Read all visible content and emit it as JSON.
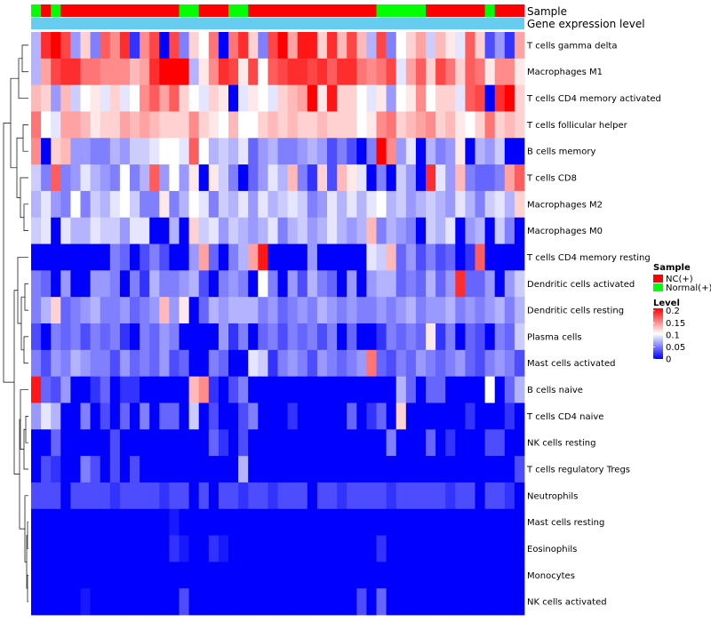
{
  "chart_data": {
    "type": "heatmap",
    "title": "",
    "annotation_labels": {
      "sample": "Sample",
      "gene_expression": "Gene expression level"
    },
    "sample_groups": [
      "Normal(+)",
      "NC(+)",
      "Normal(+)",
      "NC(+)",
      "NC(+)",
      "NC(+)",
      "NC(+)",
      "NC(+)",
      "NC(+)",
      "NC(+)",
      "NC(+)",
      "NC(+)",
      "NC(+)",
      "NC(+)",
      "NC(+)",
      "Normal(+)",
      "Normal(+)",
      "NC(+)",
      "NC(+)",
      "NC(+)",
      "Normal(+)",
      "Normal(+)",
      "NC(+)",
      "NC(+)",
      "NC(+)",
      "NC(+)",
      "NC(+)",
      "NC(+)",
      "NC(+)",
      "NC(+)",
      "NC(+)",
      "NC(+)",
      "NC(+)",
      "NC(+)",
      "NC(+)",
      "Normal(+)",
      "Normal(+)",
      "Normal(+)",
      "Normal(+)",
      "Normal(+)",
      "NC(+)",
      "NC(+)",
      "NC(+)",
      "NC(+)",
      "NC(+)",
      "NC(+)",
      "Normal(+)",
      "NC(+)",
      "NC(+)",
      "NC(+)"
    ],
    "rows": [
      "T cells gamma delta",
      "Macrophages M1",
      "T cells CD4 memory activated",
      "T cells follicular helper",
      "B cells memory",
      "T cells CD8",
      "Macrophages M2",
      "Macrophages M0",
      "T cells CD4 memory resting",
      "Dendritic cells activated",
      "Dendritic cells resting",
      "Plasma cells",
      "Mast cells activated",
      "B cells naive",
      "T cells CD4 naive",
      "NK cells resting",
      "T cells regulatory  Tregs",
      "Neutrophils",
      "Mast cells resting",
      "Eosinophils",
      "Monocytes",
      "NK cells activated"
    ],
    "values": [
      [
        0.07,
        0.19,
        0.21,
        0.18,
        0.06,
        0.12,
        0.05,
        0.17,
        0.15,
        0.19,
        0.02,
        0.15,
        0.18,
        0.0,
        0.18,
        0.05,
        0.12,
        0.1,
        0.16,
        0.0,
        0.16,
        0.19,
        0.12,
        0.05,
        0.18,
        0.21,
        0.14,
        0.2,
        0.2,
        0.12,
        0.19,
        0.13,
        0.18,
        0.13,
        0.07,
        0.18,
        0.05,
        0.1,
        0.12,
        0.14,
        0.08,
        0.13,
        0.11,
        0.09,
        0.17,
        0.12,
        0.03,
        0.06,
        0.02,
        0.14
      ],
      [
        0.07,
        0.14,
        0.18,
        0.19,
        0.19,
        0.16,
        0.16,
        0.15,
        0.15,
        0.15,
        0.13,
        0.14,
        0.19,
        0.21,
        0.21,
        0.21,
        0.07,
        0.11,
        0.15,
        0.19,
        0.18,
        0.11,
        0.18,
        0.1,
        0.17,
        0.18,
        0.19,
        0.19,
        0.18,
        0.19,
        0.17,
        0.19,
        0.19,
        0.16,
        0.15,
        0.16,
        0.18,
        0.09,
        0.14,
        0.17,
        0.12,
        0.18,
        0.16,
        0.12,
        0.17,
        0.16,
        0.11,
        0.15,
        0.15,
        0.11
      ],
      [
        0.13,
        0.12,
        0.06,
        0.13,
        0.08,
        0.1,
        0.11,
        0.09,
        0.12,
        0.09,
        0.1,
        0.15,
        0.17,
        0.14,
        0.17,
        0.12,
        0.1,
        0.09,
        0.12,
        0.11,
        0.0,
        0.09,
        0.11,
        0.1,
        0.09,
        0.12,
        0.13,
        0.14,
        0.21,
        0.11,
        0.2,
        0.12,
        0.12,
        0.1,
        0.09,
        0.11,
        0.06,
        0.1,
        0.11,
        0.15,
        0.1,
        0.12,
        0.12,
        0.09,
        0.17,
        0.18,
        0.0,
        0.19,
        0.21,
        0.12
      ],
      [
        0.16,
        0.1,
        0.09,
        0.14,
        0.14,
        0.13,
        0.11,
        0.12,
        0.12,
        0.14,
        0.13,
        0.14,
        0.13,
        0.12,
        0.12,
        0.12,
        0.15,
        0.12,
        0.11,
        0.1,
        0.13,
        0.1,
        0.1,
        0.12,
        0.13,
        0.12,
        0.13,
        0.12,
        0.12,
        0.13,
        0.12,
        0.12,
        0.12,
        0.1,
        0.11,
        0.15,
        0.16,
        0.12,
        0.13,
        0.14,
        0.15,
        0.12,
        0.13,
        0.11,
        0.1,
        0.12,
        0.16,
        0.12,
        0.13,
        0.12
      ],
      [
        0.15,
        0.0,
        0.12,
        0.13,
        0.06,
        0.06,
        0.05,
        0.05,
        0.07,
        0.06,
        0.08,
        0.08,
        0.09,
        0.1,
        0.1,
        0.09,
        0.17,
        0.1,
        0.07,
        0.08,
        0.07,
        0.09,
        0.04,
        0.06,
        0.07,
        0.05,
        0.05,
        0.06,
        0.07,
        0.06,
        0.03,
        0.05,
        0.03,
        0.0,
        0.05,
        0.21,
        0.15,
        0.06,
        0.09,
        0.0,
        0.07,
        0.05,
        0.06,
        0.11,
        0.0,
        0.07,
        0.06,
        0.08,
        0.0,
        0.0
      ],
      [
        0.08,
        0.05,
        0.17,
        0.05,
        0.06,
        0.09,
        0.07,
        0.06,
        0.05,
        0.1,
        0.05,
        0.07,
        0.17,
        0.06,
        0.1,
        0.06,
        0.11,
        0.0,
        0.11,
        0.08,
        0.05,
        0.0,
        0.04,
        0.06,
        0.09,
        0.07,
        0.13,
        0.05,
        0.02,
        0.12,
        0.03,
        0.13,
        0.11,
        0.09,
        0.0,
        0.05,
        0.0,
        0.08,
        0.06,
        0.0,
        0.19,
        0.09,
        0.06,
        0.13,
        0.05,
        0.04,
        0.04,
        0.05,
        0.14,
        0.17
      ],
      [
        0.07,
        0.09,
        0.06,
        0.05,
        0.1,
        0.05,
        0.08,
        0.07,
        0.09,
        0.1,
        0.08,
        0.05,
        0.05,
        0.11,
        0.05,
        0.07,
        0.1,
        0.09,
        0.05,
        0.08,
        0.07,
        0.09,
        0.06,
        0.09,
        0.07,
        0.08,
        0.09,
        0.08,
        0.05,
        0.06,
        0.09,
        0.07,
        0.09,
        0.07,
        0.09,
        0.1,
        0.07,
        0.08,
        0.06,
        0.07,
        0.08,
        0.07,
        0.06,
        0.09,
        0.07,
        0.05,
        0.08,
        0.09,
        0.07,
        0.12
      ],
      [
        0.08,
        0.09,
        0.0,
        0.09,
        0.07,
        0.07,
        0.09,
        0.08,
        0.08,
        0.06,
        0.09,
        0.09,
        0.0,
        0.0,
        0.07,
        0.0,
        0.12,
        0.08,
        0.09,
        0.06,
        0.08,
        0.07,
        0.06,
        0.07,
        0.09,
        0.05,
        0.07,
        0.08,
        0.06,
        0.07,
        0.09,
        0.07,
        0.06,
        0.07,
        0.13,
        0.05,
        0.07,
        0.06,
        0.05,
        0.0,
        0.08,
        0.07,
        0.09,
        0.0,
        0.06,
        0.07,
        0.0,
        0.08,
        0.05,
        0.0
      ],
      [
        0.0,
        0.0,
        0.0,
        0.0,
        0.0,
        0.0,
        0.0,
        0.0,
        0.05,
        0.04,
        0.0,
        0.03,
        0.05,
        0.03,
        0.0,
        0.0,
        0.06,
        0.14,
        0.04,
        0.0,
        0.05,
        0.07,
        0.14,
        0.2,
        0.0,
        0.0,
        0.0,
        0.0,
        0.06,
        0.0,
        0.0,
        0.0,
        0.0,
        0.0,
        0.09,
        0.08,
        0.13,
        0.04,
        0.06,
        0.03,
        0.05,
        0.03,
        0.04,
        0.0,
        0.02,
        0.17,
        0.0,
        0.0,
        0.0,
        0.0
      ],
      [
        0.05,
        0.04,
        0.0,
        0.06,
        0.0,
        0.0,
        0.06,
        0.06,
        0.05,
        0.0,
        0.05,
        0.02,
        0.07,
        0.05,
        0.05,
        0.06,
        0.07,
        0.03,
        0.0,
        0.05,
        0.06,
        0.05,
        0.0,
        0.1,
        0.05,
        0.0,
        0.06,
        0.03,
        0.07,
        0.05,
        0.04,
        0.0,
        0.06,
        0.0,
        0.06,
        0.07,
        0.07,
        0.04,
        0.05,
        0.04,
        0.07,
        0.04,
        0.06,
        0.19,
        0.04,
        0.04,
        0.06,
        0.0,
        0.06,
        0.08
      ],
      [
        0.05,
        0.07,
        0.12,
        0.04,
        0.05,
        0.06,
        0.07,
        0.05,
        0.05,
        0.06,
        0.04,
        0.05,
        0.06,
        0.13,
        0.06,
        0.11,
        0.0,
        0.04,
        0.07,
        0.06,
        0.07,
        0.07,
        0.07,
        0.05,
        0.06,
        0.04,
        0.05,
        0.06,
        0.05,
        0.07,
        0.06,
        0.05,
        0.06,
        0.05,
        0.05,
        0.06,
        0.05,
        0.06,
        0.07,
        0.05,
        0.06,
        0.06,
        0.07,
        0.05,
        0.06,
        0.05,
        0.06,
        0.07,
        0.05,
        0.07
      ],
      [
        0.03,
        0.0,
        0.05,
        0.04,
        0.05,
        0.03,
        0.05,
        0.04,
        0.05,
        0.02,
        0.0,
        0.05,
        0.04,
        0.06,
        0.05,
        0.0,
        0.0,
        0.0,
        0.0,
        0.06,
        0.02,
        0.05,
        0.0,
        0.04,
        0.05,
        0.03,
        0.05,
        0.04,
        0.05,
        0.03,
        0.05,
        0.0,
        0.04,
        0.0,
        0.0,
        0.02,
        0.05,
        0.04,
        0.05,
        0.04,
        0.11,
        0.02,
        0.05,
        0.0,
        0.04,
        0.03,
        0.0,
        0.05,
        0.04,
        0.08
      ],
      [
        0.05,
        0.03,
        0.06,
        0.05,
        0.07,
        0.06,
        0.05,
        0.05,
        0.03,
        0.06,
        0.04,
        0.05,
        0.04,
        0.06,
        0.03,
        0.04,
        0.0,
        0.0,
        0.05,
        0.04,
        0.0,
        0.0,
        0.09,
        0.08,
        0.02,
        0.05,
        0.06,
        0.05,
        0.03,
        0.06,
        0.05,
        0.04,
        0.05,
        0.06,
        0.16,
        0.04,
        0.03,
        0.05,
        0.04,
        0.06,
        0.05,
        0.04,
        0.05,
        0.06,
        0.04,
        0.03,
        0.05,
        0.06,
        0.05,
        0.03
      ],
      [
        0.2,
        0.04,
        0.03,
        0.06,
        0.0,
        0.0,
        0.02,
        0.04,
        0.0,
        0.02,
        0.02,
        0.0,
        0.0,
        0.0,
        0.0,
        0.0,
        0.13,
        0.15,
        0.02,
        0.0,
        0.03,
        0.05,
        0.0,
        0.0,
        0.0,
        0.0,
        0.0,
        0.0,
        0.0,
        0.0,
        0.0,
        0.0,
        0.0,
        0.0,
        0.0,
        0.0,
        0.0,
        0.07,
        0.04,
        0.0,
        0.04,
        0.04,
        0.0,
        0.0,
        0.0,
        0.0,
        0.1,
        0.0,
        0.04,
        0.07
      ],
      [
        0.06,
        0.09,
        0.07,
        0.0,
        0.0,
        0.05,
        0.0,
        0.03,
        0.0,
        0.04,
        0.0,
        0.05,
        0.0,
        0.04,
        0.04,
        0.0,
        0.08,
        0.0,
        0.03,
        0.0,
        0.0,
        0.03,
        0.05,
        0.0,
        0.0,
        0.0,
        0.02,
        0.0,
        0.0,
        0.0,
        0.0,
        0.0,
        0.04,
        0.0,
        0.02,
        0.04,
        0.0,
        0.12,
        0.0,
        0.0,
        0.0,
        0.0,
        0.0,
        0.0,
        0.02,
        0.0,
        0.0,
        0.0,
        0.02,
        0.0
      ],
      [
        0.0,
        0.0,
        0.04,
        0.0,
        0.0,
        0.0,
        0.0,
        0.0,
        0.03,
        0.0,
        0.0,
        0.0,
        0.0,
        0.0,
        0.0,
        0.0,
        0.0,
        0.0,
        0.04,
        0.02,
        0.0,
        0.03,
        0.0,
        0.0,
        0.0,
        0.0,
        0.0,
        0.0,
        0.0,
        0.0,
        0.0,
        0.0,
        0.0,
        0.0,
        0.0,
        0.0,
        0.05,
        0.0,
        0.0,
        0.0,
        0.04,
        0.0,
        0.02,
        0.0,
        0.0,
        0.0,
        0.03,
        0.03,
        0.0,
        0.0
      ],
      [
        0.0,
        0.03,
        0.02,
        0.0,
        0.0,
        0.05,
        0.03,
        0.0,
        0.03,
        0.0,
        0.03,
        0.0,
        0.0,
        0.0,
        0.0,
        0.0,
        0.0,
        0.0,
        0.0,
        0.0,
        0.0,
        0.07,
        0.0,
        0.0,
        0.0,
        0.0,
        0.0,
        0.0,
        0.0,
        0.0,
        0.0,
        0.0,
        0.0,
        0.0,
        0.0,
        0.0,
        0.0,
        0.0,
        0.0,
        0.0,
        0.0,
        0.0,
        0.0,
        0.0,
        0.0,
        0.0,
        0.0,
        0.0,
        0.0,
        0.03
      ],
      [
        0.03,
        0.03,
        0.03,
        0.0,
        0.03,
        0.03,
        0.03,
        0.03,
        0.02,
        0.03,
        0.03,
        0.03,
        0.03,
        0.02,
        0.03,
        0.03,
        0.0,
        0.03,
        0.0,
        0.03,
        0.03,
        0.02,
        0.03,
        0.03,
        0.02,
        0.03,
        0.03,
        0.03,
        0.0,
        0.03,
        0.03,
        0.02,
        0.03,
        0.03,
        0.03,
        0.03,
        0.02,
        0.03,
        0.03,
        0.03,
        0.03,
        0.03,
        0.02,
        0.03,
        0.03,
        0.0,
        0.03,
        0.03,
        0.02,
        0.0
      ],
      [
        0.0,
        0.0,
        0.0,
        0.0,
        0.0,
        0.0,
        0.0,
        0.0,
        0.0,
        0.0,
        0.0,
        0.0,
        0.0,
        0.0,
        0.01,
        0.0,
        0.0,
        0.0,
        0.0,
        0.0,
        0.0,
        0.0,
        0.0,
        0.0,
        0.0,
        0.0,
        0.0,
        0.0,
        0.0,
        0.0,
        0.0,
        0.0,
        0.0,
        0.0,
        0.0,
        0.0,
        0.0,
        0.0,
        0.0,
        0.0,
        0.0,
        0.0,
        0.0,
        0.0,
        0.0,
        0.0,
        0.0,
        0.0,
        0.0,
        0.0
      ],
      [
        0.0,
        0.0,
        0.0,
        0.0,
        0.0,
        0.0,
        0.0,
        0.0,
        0.0,
        0.0,
        0.0,
        0.0,
        0.0,
        0.0,
        0.02,
        0.01,
        0.0,
        0.0,
        0.02,
        0.01,
        0.0,
        0.0,
        0.0,
        0.0,
        0.0,
        0.0,
        0.0,
        0.0,
        0.0,
        0.0,
        0.0,
        0.0,
        0.0,
        0.0,
        0.0,
        0.02,
        0.0,
        0.0,
        0.0,
        0.0,
        0.0,
        0.0,
        0.0,
        0.0,
        0.0,
        0.0,
        0.0,
        0.0,
        0.0,
        0.0
      ],
      [
        0.0,
        0.0,
        0.0,
        0.0,
        0.0,
        0.0,
        0.0,
        0.0,
        0.0,
        0.0,
        0.0,
        0.0,
        0.0,
        0.0,
        0.0,
        0.0,
        0.0,
        0.0,
        0.0,
        0.0,
        0.0,
        0.0,
        0.0,
        0.0,
        0.0,
        0.0,
        0.0,
        0.0,
        0.0,
        0.0,
        0.0,
        0.0,
        0.0,
        0.0,
        0.0,
        0.0,
        0.0,
        0.0,
        0.0,
        0.0,
        0.0,
        0.0,
        0.0,
        0.0,
        0.0,
        0.0,
        0.0,
        0.0,
        0.0,
        0.0
      ],
      [
        0.0,
        0.0,
        0.0,
        0.0,
        0.0,
        0.01,
        0.0,
        0.0,
        0.0,
        0.0,
        0.0,
        0.0,
        0.0,
        0.0,
        0.0,
        0.03,
        0.0,
        0.0,
        0.0,
        0.0,
        0.0,
        0.0,
        0.0,
        0.0,
        0.0,
        0.0,
        0.0,
        0.0,
        0.0,
        0.0,
        0.0,
        0.0,
        0.0,
        0.03,
        0.0,
        0.04,
        0.0,
        0.0,
        0.0,
        0.0,
        0.0,
        0.0,
        0.0,
        0.0,
        0.0,
        0.0,
        0.0,
        0.0,
        0.0,
        0.0
      ]
    ],
    "legend": {
      "sample_title": "Sample",
      "sample_entries": [
        {
          "label": "NC(+)",
          "color": "#ff0000"
        },
        {
          "label": "Normal(+)",
          "color": "#00ff00"
        }
      ],
      "level_title": "Level",
      "level_ticks": [
        "0.2",
        "0.15",
        "0.1",
        "0.05",
        "0"
      ],
      "level_tick_values": [
        0.2,
        0.15,
        0.1,
        0.05,
        0
      ],
      "color_low": "#0000ff",
      "color_mid": "#ffffff",
      "color_high": "#ff0000",
      "range": [
        0,
        0.21
      ],
      "midpoint": 0.1
    },
    "gene_expression_color": "#66ccf0"
  }
}
